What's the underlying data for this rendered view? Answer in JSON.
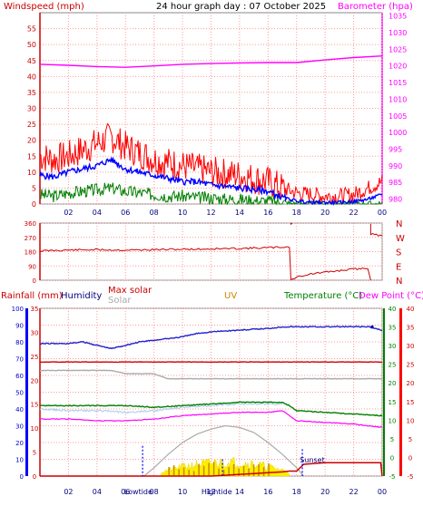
{
  "header": {
    "title": "24 hour graph day : 07 October 2025",
    "left_label": "Windspeed (mph)",
    "right_label": "Barometer (hpa)"
  },
  "colors": {
    "wind_max": "#ff0000",
    "wind_avg": "#0000ff",
    "wind_low": "#008000",
    "barometer": "#ff00ff",
    "winddir": "#cc0000",
    "rainfall": "#cc0000",
    "humidity": "#2222cc",
    "max_solar": "#aaaaaa",
    "solar": "#ffee00",
    "uv": "#cc8800",
    "temperature": "#008000",
    "dew": "#ff00ff",
    "apparent": "#aaccee",
    "axis_left_bottom": "#0000ff",
    "axis_right_bottom": "#ff0000",
    "axis_temp": "#008000",
    "grid": "#ff0000"
  },
  "chart_data": [
    {
      "type": "line",
      "title": "24 hour graph day : 07 October 2025",
      "xlabel": "",
      "x_ticks": [
        "02",
        "04",
        "06",
        "08",
        "10",
        "12",
        "14",
        "16",
        "18",
        "20",
        "22",
        "00"
      ],
      "y_left": {
        "label": "Windspeed (mph)",
        "ticks": [
          "0",
          "5",
          "10",
          "15",
          "20",
          "25",
          "30",
          "35",
          "40",
          "45",
          "50",
          "55"
        ],
        "range": [
          0,
          60
        ]
      },
      "y_right": {
        "label": "Barometer (hpa)",
        "ticks": [
          "980",
          "985",
          "990",
          "995",
          "1000",
          "1005",
          "1010",
          "1015",
          "1020",
          "1025",
          "1030",
          "1035"
        ],
        "range": [
          978.5,
          1036
        ]
      },
      "grid": true,
      "series": [
        {
          "name": "wind_max",
          "axis": "left",
          "points": [
            [
              0,
              15
            ],
            [
              1,
              14
            ],
            [
              2,
              15
            ],
            [
              3,
              17
            ],
            [
              4,
              19
            ],
            [
              5,
              21
            ],
            [
              6,
              18
            ],
            [
              7,
              16
            ],
            [
              8,
              14
            ],
            [
              9,
              13
            ],
            [
              10,
              12
            ],
            [
              11,
              11
            ],
            [
              12,
              10
            ],
            [
              13,
              9.5
            ],
            [
              14,
              9
            ],
            [
              15,
              8
            ],
            [
              16,
              7
            ],
            [
              17,
              5
            ],
            [
              18,
              3.5
            ],
            [
              19,
              3
            ],
            [
              20,
              2.5
            ],
            [
              21,
              2.5
            ],
            [
              22,
              3
            ],
            [
              23,
              5
            ],
            [
              24,
              7
            ]
          ]
        },
        {
          "name": "wind_avg",
          "axis": "left",
          "points": [
            [
              0,
              9
            ],
            [
              1,
              8.5
            ],
            [
              2,
              10
            ],
            [
              3,
              11
            ],
            [
              4,
              12
            ],
            [
              5,
              14
            ],
            [
              6,
              11
            ],
            [
              7,
              10
            ],
            [
              8,
              9
            ],
            [
              9,
              8
            ],
            [
              10,
              7
            ],
            [
              11,
              7
            ],
            [
              12,
              6
            ],
            [
              13,
              5.5
            ],
            [
              14,
              5
            ],
            [
              15,
              4.5
            ],
            [
              16,
              4
            ],
            [
              17,
              2
            ],
            [
              18,
              1
            ],
            [
              19,
              0.5
            ],
            [
              20,
              0.5
            ],
            [
              21,
              0.5
            ],
            [
              22,
              0.8
            ],
            [
              23,
              1.5
            ],
            [
              24,
              3
            ]
          ]
        },
        {
          "name": "wind_low",
          "axis": "left",
          "points": [
            [
              0,
              3
            ],
            [
              1,
              2.5
            ],
            [
              2,
              3.5
            ],
            [
              3,
              4
            ],
            [
              4,
              4.5
            ],
            [
              5,
              5
            ],
            [
              6,
              4
            ],
            [
              7,
              3.5
            ],
            [
              8,
              3
            ],
            [
              9,
              2.5
            ],
            [
              10,
              2.5
            ],
            [
              11,
              2
            ],
            [
              12,
              2
            ],
            [
              13,
              1.5
            ],
            [
              14,
              1.5
            ],
            [
              15,
              1
            ],
            [
              16,
              1
            ],
            [
              17,
              0.5
            ],
            [
              18,
              0
            ],
            [
              19,
              0
            ],
            [
              20,
              0
            ],
            [
              21,
              0
            ],
            [
              22,
              0
            ],
            [
              23,
              0
            ],
            [
              24,
              0
            ]
          ]
        },
        {
          "name": "barometer",
          "axis": "right",
          "points": [
            [
              0,
              1020.5
            ],
            [
              2,
              1020.2
            ],
            [
              4,
              1019.8
            ],
            [
              6,
              1019.6
            ],
            [
              8,
              1020.0
            ],
            [
              10,
              1020.5
            ],
            [
              12,
              1020.7
            ],
            [
              14,
              1020.9
            ],
            [
              16,
              1021.0
            ],
            [
              18,
              1021.0
            ],
            [
              20,
              1021.8
            ],
            [
              22,
              1022.5
            ],
            [
              24,
              1023.0
            ]
          ]
        }
      ]
    },
    {
      "type": "line",
      "title": "",
      "x_ticks": [
        "02",
        "04",
        "06",
        "08",
        "10",
        "12",
        "14",
        "16",
        "18",
        "20",
        "22",
        "00"
      ],
      "y_left": {
        "ticks": [
          "0",
          "90",
          "180",
          "270",
          "360"
        ],
        "range": [
          0,
          360
        ]
      },
      "y_right_labels": [
        "N",
        "W",
        "S",
        "E",
        "N"
      ],
      "series": [
        {
          "name": "wind_direction",
          "points": [
            [
              0,
              185
            ],
            [
              2,
              190
            ],
            [
              4,
              192
            ],
            [
              6,
              190
            ],
            [
              8,
              192
            ],
            [
              10,
              195
            ],
            [
              12,
              197
            ],
            [
              14,
              200
            ],
            [
              16,
              205
            ],
            [
              17.5,
              210
            ],
            [
              17.6,
              355
            ],
            [
              17.7,
              5
            ],
            [
              18,
              20
            ],
            [
              19,
              40
            ],
            [
              20,
              50
            ],
            [
              21,
              60
            ],
            [
              22,
              70
            ],
            [
              23,
              75
            ],
            [
              23.2,
              290
            ],
            [
              24,
              280
            ]
          ]
        }
      ]
    },
    {
      "type": "line",
      "title": "",
      "x_ticks": [
        "02",
        "04",
        "06",
        "08",
        "10",
        "12",
        "14",
        "16",
        "18",
        "20",
        "22",
        "00"
      ],
      "labels": {
        "rainfall": "Rainfall (mm)",
        "humidity": "Humidity",
        "max_solar": "Max solar",
        "solar": "Solar",
        "uv": "UV",
        "temperature": "Temperature (°C)",
        "dew_point": "Dew Point (°C)"
      },
      "annotations": {
        "lowtide": "Lowtide",
        "hightide": "Hightide",
        "sunset": "Sunset"
      },
      "axes": {
        "rain_humidity": {
          "ticks": [
            "0",
            "10",
            "20",
            "30",
            "40",
            "50",
            "60",
            "70",
            "80",
            "90",
            "100"
          ],
          "range": [
            0,
            100
          ]
        },
        "uv_scale": {
          "ticks": [
            "0",
            "5",
            "10",
            "15",
            "20",
            "25",
            "30",
            "35"
          ],
          "range": [
            0,
            35
          ]
        },
        "temperature": {
          "ticks": [
            "-5",
            "0",
            "5",
            "10",
            "15",
            "20",
            "25",
            "30",
            "35",
            "40"
          ],
          "range": [
            -5,
            40
          ]
        },
        "dew_point": {
          "ticks": [
            "-5",
            "0",
            "5",
            "10",
            "15",
            "20",
            "25",
            "30",
            "35",
            "40"
          ],
          "range": [
            -5,
            40
          ]
        }
      },
      "series": [
        {
          "name": "humidity",
          "points": [
            [
              0,
              79
            ],
            [
              2,
              79
            ],
            [
              3,
              80
            ],
            [
              4,
              78
            ],
            [
              5,
              76
            ],
            [
              6,
              78
            ],
            [
              7,
              80
            ],
            [
              8,
              81
            ],
            [
              9,
              82
            ],
            [
              10,
              83
            ],
            [
              11,
              85
            ],
            [
              12,
              86
            ],
            [
              14,
              87
            ],
            [
              16,
              88
            ],
            [
              17,
              89
            ],
            [
              18,
              89
            ],
            [
              20,
              89
            ],
            [
              22,
              89
            ],
            [
              23,
              89
            ],
            [
              24,
              87
            ]
          ]
        },
        {
          "name": "max_solar",
          "points": [
            [
              0,
              20
            ],
            [
              24,
              20
            ]
          ]
        },
        {
          "name": "max_solar_level",
          "points": [
            [
              0,
              63
            ],
            [
              5,
              63
            ],
            [
              6,
              61
            ],
            [
              8,
              61
            ],
            [
              9,
              58
            ],
            [
              18,
              58
            ],
            [
              24,
              58
            ]
          ]
        },
        {
          "name": "solar_max_curve",
          "points": [
            [
              7.3,
              0
            ],
            [
              8,
              5
            ],
            [
              9,
              13
            ],
            [
              10,
              20
            ],
            [
              11,
              25
            ],
            [
              12,
              28
            ],
            [
              13,
              30
            ],
            [
              14,
              29
            ],
            [
              15,
              26
            ],
            [
              16,
              20
            ],
            [
              17,
              13
            ],
            [
              18,
              5
            ],
            [
              18.5,
              0
            ]
          ]
        },
        {
          "name": "temperature",
          "points": [
            [
              0,
              42
            ],
            [
              2,
              42
            ],
            [
              4,
              42
            ],
            [
              6,
              42
            ],
            [
              8,
              41
            ],
            [
              10,
              42
            ],
            [
              12,
              43
            ],
            [
              14,
              44
            ],
            [
              16,
              44
            ],
            [
              17,
              44
            ],
            [
              17.5,
              42
            ],
            [
              18,
              39
            ],
            [
              20,
              38
            ],
            [
              22,
              37
            ],
            [
              24,
              36
            ]
          ]
        },
        {
          "name": "dew_point",
          "points": [
            [
              0,
              34
            ],
            [
              2,
              34
            ],
            [
              4,
              33
            ],
            [
              6,
              33
            ],
            [
              8,
              34
            ],
            [
              10,
              36
            ],
            [
              12,
              37
            ],
            [
              14,
              38
            ],
            [
              16,
              38
            ],
            [
              17,
              39
            ],
            [
              17.5,
              36
            ],
            [
              18,
              33
            ],
            [
              20,
              32
            ],
            [
              22,
              31
            ],
            [
              24,
              29
            ]
          ]
        },
        {
          "name": "apparent",
          "points": [
            [
              0,
              40
            ],
            [
              2,
              39
            ],
            [
              4,
              39
            ],
            [
              6,
              38
            ],
            [
              8,
              39
            ],
            [
              10,
              41
            ],
            [
              12,
              42
            ],
            [
              14,
              43
            ],
            [
              16,
              43
            ],
            [
              17,
              43
            ]
          ]
        },
        {
          "name": "rainfall",
          "points": [
            [
              0,
              0
            ],
            [
              12,
              0
            ],
            [
              13,
              0.5
            ],
            [
              14,
              1
            ],
            [
              15,
              1.5
            ],
            [
              16,
              2
            ],
            [
              17,
              2.5
            ],
            [
              17.5,
              3
            ],
            [
              18,
              3
            ],
            [
              18.5,
              7
            ],
            [
              20,
              8
            ],
            [
              22,
              8
            ],
            [
              23.9,
              8
            ],
            [
              24,
              0
            ]
          ]
        },
        {
          "name": "rainfall_baseline",
          "points": [
            [
              0,
              68
            ],
            [
              24,
              68
            ]
          ]
        }
      ]
    }
  ]
}
